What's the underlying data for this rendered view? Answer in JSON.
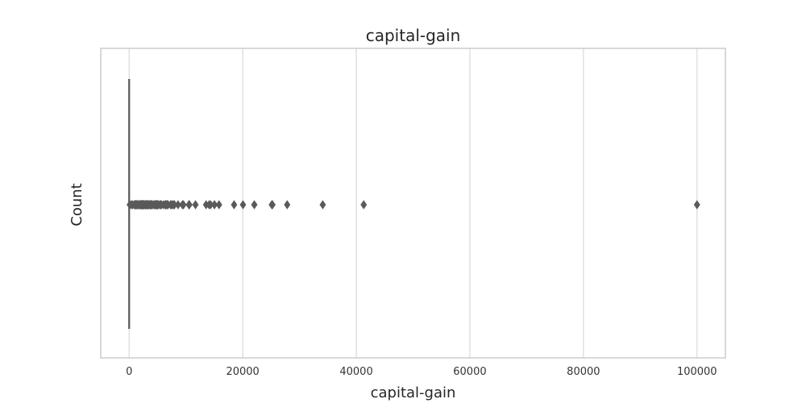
{
  "chart_data": {
    "type": "box",
    "orientation": "horizontal",
    "title": "capital-gain",
    "xlabel": "capital-gain",
    "ylabel": "Count",
    "xlim": [
      -5000,
      105000
    ],
    "xticks": [
      0,
      20000,
      40000,
      60000,
      80000,
      100000
    ],
    "xtick_labels": [
      "0",
      "20000",
      "40000",
      "60000",
      "80000",
      "100000"
    ],
    "grid": true,
    "box": {
      "min": 0,
      "q1": 0,
      "median": 0,
      "q3": 0,
      "max": 0
    },
    "outliers": [
      114,
      401,
      594,
      914,
      991,
      1055,
      1086,
      1111,
      1151,
      1173,
      1264,
      1409,
      1424,
      1455,
      1471,
      1506,
      1639,
      1797,
      1831,
      1848,
      2009,
      2036,
      2050,
      2062,
      2105,
      2174,
      2176,
      2202,
      2228,
      2290,
      2329,
      2346,
      2354,
      2387,
      2407,
      2414,
      2463,
      2538,
      2580,
      2597,
      2635,
      2653,
      2829,
      2885,
      2907,
      2936,
      2961,
      2964,
      2977,
      2993,
      3103,
      3137,
      3273,
      3325,
      3411,
      3418,
      3432,
      3456,
      3464,
      3471,
      3674,
      3781,
      3818,
      3887,
      3908,
      3942,
      4064,
      4101,
      4386,
      4416,
      4508,
      4650,
      4687,
      4787,
      4865,
      4931,
      4934,
      5013,
      5060,
      5178,
      5455,
      5556,
      5721,
      6097,
      6360,
      6418,
      6497,
      6514,
      6723,
      6767,
      6849,
      7298,
      7430,
      7443,
      7688,
      7896,
      7978,
      8614,
      9386,
      9562,
      10520,
      10566,
      10605,
      11678,
      13550,
      14084,
      14344,
      15020,
      15024,
      15831,
      18481,
      20051,
      22040,
      25124,
      25236,
      27828,
      34095,
      41310,
      99999
    ],
    "color": "#5a5a5a"
  }
}
